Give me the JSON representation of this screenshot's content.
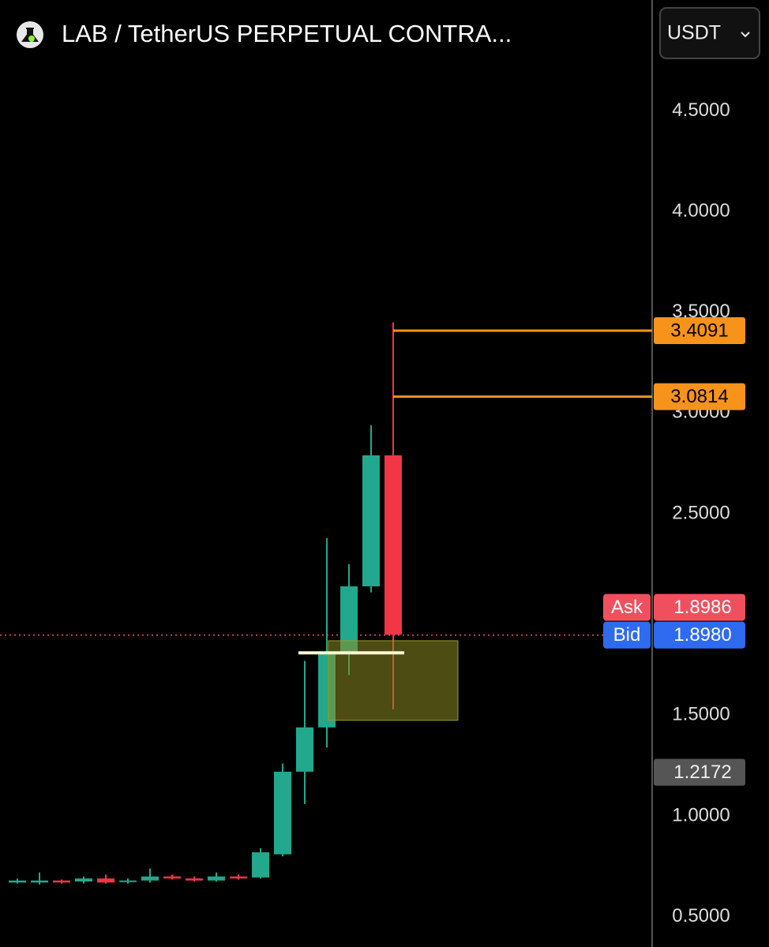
{
  "header": {
    "title": "LAB / TetherUS PERPETUAL CONTRA...",
    "currency": "USDT"
  },
  "chart_data": {
    "type": "candlestick",
    "open": [
      0.67,
      0.67,
      0.68,
      0.675,
      0.69,
      0.675,
      0.68,
      0.7,
      0.69,
      0.68,
      0.7,
      0.695,
      0.81,
      1.22,
      1.44,
      1.81,
      2.14,
      2.79
    ],
    "high": [
      0.69,
      0.72,
      0.685,
      0.7,
      0.71,
      0.69,
      0.74,
      0.71,
      0.7,
      0.72,
      0.71,
      0.84,
      1.26,
      1.77,
      2.38,
      2.25,
      2.94,
      3.45
    ],
    "low": [
      0.665,
      0.66,
      0.665,
      0.665,
      0.665,
      0.665,
      0.67,
      0.685,
      0.675,
      0.675,
      0.685,
      0.69,
      0.8,
      1.06,
      1.34,
      1.7,
      2.11,
      1.53
    ],
    "close": [
      0.68,
      0.68,
      0.67,
      0.69,
      0.67,
      0.68,
      0.7,
      0.69,
      0.68,
      0.7,
      0.69,
      0.82,
      1.22,
      1.44,
      1.81,
      2.14,
      2.79,
      1.9
    ],
    "up_color": "#22a88c",
    "down_color": "#f23645",
    "ylim": [
      0.35,
      5.05
    ],
    "yticks": [
      {
        "value": 0.5,
        "label": "0.5000"
      },
      {
        "value": 1.0,
        "label": "1.0000"
      },
      {
        "value": 1.5,
        "label": "1.5000"
      },
      {
        "value": 2.5,
        "label": "2.5000"
      },
      {
        "value": 3.0,
        "label": "3.0000"
      },
      {
        "value": 3.5,
        "label": "3.5000"
      },
      {
        "value": 4.0,
        "label": "4.0000"
      },
      {
        "value": 4.5,
        "label": "4.5000"
      }
    ],
    "price_lines": [
      {
        "value": 3.4091,
        "label": "3.4091",
        "color": "#f7931a"
      },
      {
        "value": 3.0814,
        "label": "3.0814",
        "color": "#f7931a"
      }
    ],
    "quotes": [
      {
        "name": "Ask",
        "value": 1.8986,
        "label": "1.8986",
        "color": "#f0505e"
      },
      {
        "name": "Bid",
        "value": 1.898,
        "label": "1.8980",
        "color": "#2f6bf0"
      }
    ],
    "last_price": {
      "value": 1.2172,
      "label": "1.2172"
    },
    "zone": {
      "low": 1.475,
      "high": 1.87
    },
    "level": 1.81
  }
}
